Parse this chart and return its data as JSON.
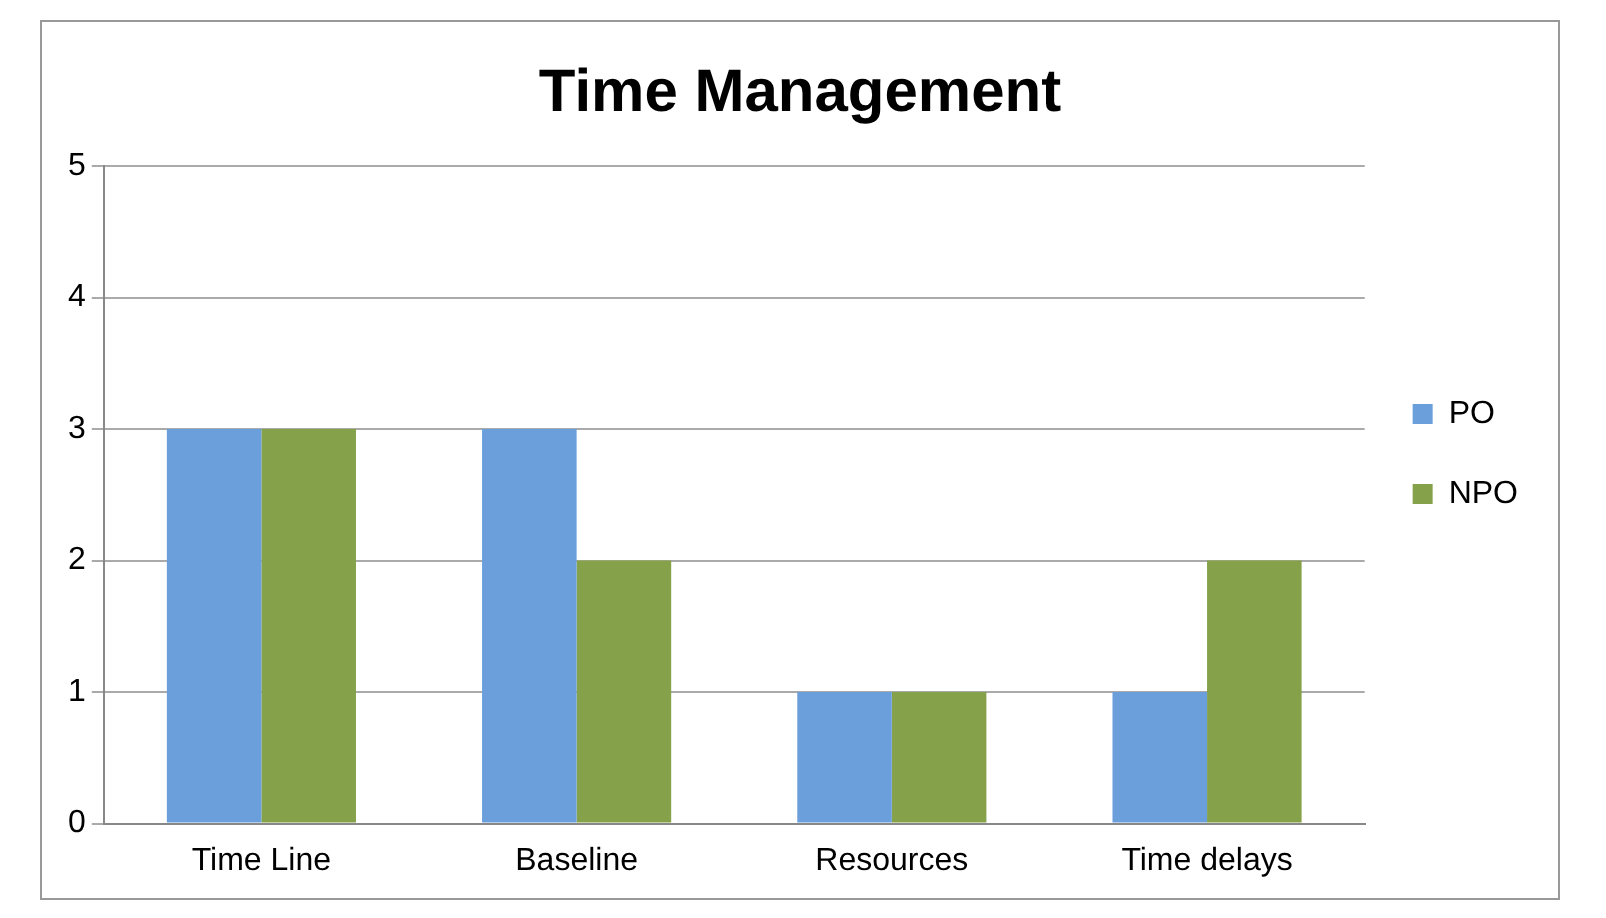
{
  "chart_data": {
    "type": "bar",
    "title": "Time Management",
    "categories": [
      "Time Line",
      "Baseline",
      "Resources",
      "Time delays"
    ],
    "series": [
      {
        "name": "PO",
        "color": "#6a9fdc",
        "values": [
          3,
          3,
          1,
          1
        ]
      },
      {
        "name": "NPO",
        "color": "#85a24b",
        "values": [
          3,
          2,
          1,
          2
        ]
      }
    ],
    "ylim": [
      0,
      5
    ],
    "yticks": [
      0,
      1,
      2,
      3,
      4,
      5
    ],
    "grid": "y",
    "legend": "right"
  }
}
